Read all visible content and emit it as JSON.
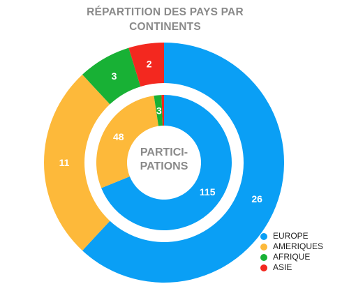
{
  "chart_data": {
    "type": "pie",
    "title_lines": [
      "RÉPARTITION DES PAYS PAR",
      "CONTINENTS"
    ],
    "center_label_lines": [
      "PARTICI-",
      "PATIONS"
    ],
    "categories": [
      "EUROPE",
      "AMERIQUES",
      "AFRIQUE",
      "ASIE"
    ],
    "colors": [
      "#0a9ff5",
      "#fdb93a",
      "#18b135",
      "#f3281f"
    ],
    "rings": [
      {
        "ring": "outer",
        "values": [
          26,
          11,
          3,
          2
        ]
      },
      {
        "ring": "inner",
        "values": [
          115,
          48,
          3,
          1
        ]
      }
    ],
    "data_labels": {
      "outer": [
        "26",
        "11",
        "3",
        "2"
      ],
      "inner": [
        "115",
        "48",
        "3",
        ""
      ]
    },
    "legend_position": "bottom-right"
  }
}
